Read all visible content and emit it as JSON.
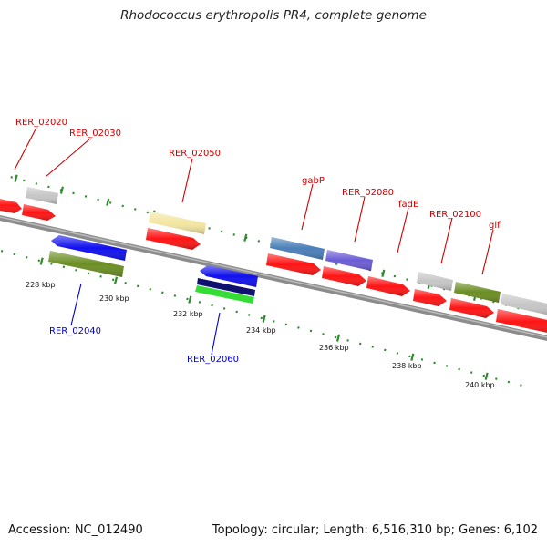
{
  "title": "Rhodococcus erythropolis PR4, complete genome",
  "footer": {
    "accession": "Accession: NC_012490",
    "summary": "Topology: circular; Length: 6,516,310 bp; Genes: 6,102"
  },
  "colors": {
    "top_label": "#cc0000",
    "bottom_label": "#0000cc",
    "tick": "#2e8b2e",
    "backbone": "#8c8c8c"
  },
  "ruler": [
    "228 kbp",
    "230 kbp",
    "232 kbp",
    "234 kbp",
    "236 kbp",
    "238 kbp",
    "240 kbp"
  ],
  "labels_top": [
    "RER_02020",
    "RER_02030",
    "RER_02050",
    "gabP",
    "RER_02080",
    "fadE",
    "RER_02100",
    "glf"
  ],
  "labels_bottom": [
    "RER_02040",
    "RER_02060"
  ]
}
